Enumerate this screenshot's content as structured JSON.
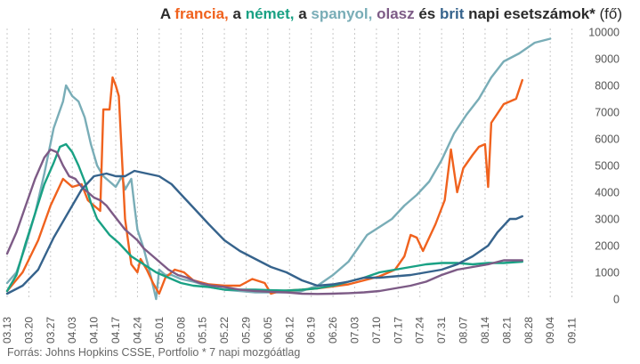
{
  "title": {
    "p1": "A ",
    "c1": "francia,",
    "p2": " a ",
    "c2": "német,",
    "p3": " a ",
    "c3": "spanyol,",
    "p4": " ",
    "c4": "olasz",
    "p5": " és ",
    "c5": "brit",
    "p6": " napi esetszámok* ",
    "p7": "(fő)"
  },
  "source": "Forrás: Johns Hopkins CSSE, Portfolio  * 7 napi mozgóátlag",
  "chart_data": {
    "type": "line",
    "title": "A francia, a német, a spanyol, olasz és brit napi esetszámok* (fő)",
    "x_tick_labels": [
      "03.13",
      "03.20",
      "03.27",
      "04.03",
      "04.10",
      "04.17",
      "04.24",
      "05.01",
      "05.08",
      "05.15",
      "05.22",
      "05.29",
      "06.05",
      "06.12",
      "06.19",
      "06.26",
      "07.03",
      "07.10",
      "07.17",
      "07.24",
      "07.31",
      "08.07",
      "08.14",
      "08.21",
      "08.28",
      "09.04",
      "09.11"
    ],
    "x_range_days": [
      0,
      187
    ],
    "ylim": [
      0,
      10000
    ],
    "y_ticks": [
      0,
      1000,
      2000,
      3000,
      4000,
      5000,
      6000,
      7000,
      8000,
      9000,
      10000
    ],
    "y_axis_side": "right",
    "grid": "vertical dashed",
    "series": [
      {
        "name": "spanyol",
        "color": "#79adb7",
        "points": [
          [
            0,
            600
          ],
          [
            3,
            1000
          ],
          [
            6,
            2000
          ],
          [
            9,
            3200
          ],
          [
            12,
            4700
          ],
          [
            15,
            6400
          ],
          [
            18,
            7400
          ],
          [
            19,
            8000
          ],
          [
            21,
            7600
          ],
          [
            23,
            7400
          ],
          [
            25,
            6800
          ],
          [
            27,
            5800
          ],
          [
            29,
            5000
          ],
          [
            31,
            4600
          ],
          [
            33,
            4400
          ],
          [
            35,
            4200
          ],
          [
            37,
            4600
          ],
          [
            38,
            4100
          ],
          [
            40,
            4500
          ],
          [
            41,
            3500
          ],
          [
            42,
            2600
          ],
          [
            44,
            1900
          ],
          [
            46,
            1000
          ],
          [
            48,
            0
          ],
          [
            49,
            1100
          ],
          [
            51,
            900
          ],
          [
            53,
            900
          ],
          [
            56,
            750
          ],
          [
            60,
            650
          ],
          [
            63,
            550
          ],
          [
            65,
            450
          ],
          [
            70,
            350
          ],
          [
            75,
            300
          ],
          [
            80,
            250
          ],
          [
            85,
            250
          ],
          [
            90,
            250
          ],
          [
            95,
            300
          ],
          [
            100,
            500
          ],
          [
            105,
            900
          ],
          [
            110,
            1400
          ],
          [
            113,
            1900
          ],
          [
            116,
            2400
          ],
          [
            120,
            2700
          ],
          [
            124,
            3000
          ],
          [
            128,
            3500
          ],
          [
            132,
            3900
          ],
          [
            136,
            4400
          ],
          [
            140,
            5200
          ],
          [
            144,
            6200
          ],
          [
            148,
            6900
          ],
          [
            152,
            7500
          ],
          [
            156,
            8300
          ],
          [
            160,
            8900
          ],
          [
            165,
            9200
          ],
          [
            170,
            9600
          ],
          [
            175,
            9750
          ]
        ]
      },
      {
        "name": "francia",
        "color": "#f0621e",
        "points": [
          [
            0,
            300
          ],
          [
            5,
            1000
          ],
          [
            10,
            2200
          ],
          [
            14,
            3500
          ],
          [
            18,
            4500
          ],
          [
            21,
            4200
          ],
          [
            24,
            4300
          ],
          [
            26,
            3700
          ],
          [
            28,
            3500
          ],
          [
            30,
            3300
          ],
          [
            31,
            7100
          ],
          [
            33,
            7100
          ],
          [
            34,
            8300
          ],
          [
            35,
            8000
          ],
          [
            36,
            7600
          ],
          [
            38,
            3000
          ],
          [
            40,
            1300
          ],
          [
            42,
            1000
          ],
          [
            43,
            1500
          ],
          [
            45,
            1100
          ],
          [
            47,
            600
          ],
          [
            49,
            200
          ],
          [
            51,
            800
          ],
          [
            54,
            1100
          ],
          [
            57,
            1000
          ],
          [
            60,
            700
          ],
          [
            65,
            550
          ],
          [
            70,
            500
          ],
          [
            75,
            500
          ],
          [
            79,
            750
          ],
          [
            83,
            600
          ],
          [
            85,
            200
          ],
          [
            88,
            300
          ],
          [
            95,
            350
          ],
          [
            100,
            400
          ],
          [
            110,
            550
          ],
          [
            115,
            700
          ],
          [
            120,
            850
          ],
          [
            125,
            1100
          ],
          [
            128,
            1600
          ],
          [
            130,
            2400
          ],
          [
            132,
            2300
          ],
          [
            134,
            1800
          ],
          [
            138,
            2800
          ],
          [
            141,
            3700
          ],
          [
            143,
            5600
          ],
          [
            145,
            4000
          ],
          [
            147,
            4900
          ],
          [
            150,
            5400
          ],
          [
            152,
            5700
          ],
          [
            154,
            5800
          ],
          [
            155,
            4200
          ],
          [
            156,
            6600
          ],
          [
            160,
            7300
          ],
          [
            164,
            7500
          ],
          [
            166,
            8200
          ]
        ]
      },
      {
        "name": "német",
        "color": "#19a184",
        "points": [
          [
            0,
            300
          ],
          [
            3,
            900
          ],
          [
            6,
            2100
          ],
          [
            9,
            3200
          ],
          [
            12,
            4300
          ],
          [
            15,
            5100
          ],
          [
            17,
            5700
          ],
          [
            19,
            5800
          ],
          [
            21,
            5500
          ],
          [
            23,
            5000
          ],
          [
            25,
            4400
          ],
          [
            27,
            3600
          ],
          [
            29,
            3000
          ],
          [
            31,
            2700
          ],
          [
            33,
            2400
          ],
          [
            36,
            2100
          ],
          [
            40,
            1600
          ],
          [
            44,
            1300
          ],
          [
            48,
            1000
          ],
          [
            52,
            800
          ],
          [
            56,
            600
          ],
          [
            60,
            500
          ],
          [
            65,
            450
          ],
          [
            70,
            350
          ],
          [
            75,
            350
          ],
          [
            80,
            350
          ],
          [
            85,
            330
          ],
          [
            90,
            320
          ],
          [
            95,
            350
          ],
          [
            100,
            400
          ],
          [
            105,
            500
          ],
          [
            110,
            650
          ],
          [
            115,
            800
          ],
          [
            120,
            1000
          ],
          [
            125,
            1100
          ],
          [
            130,
            1200
          ],
          [
            135,
            1300
          ],
          [
            140,
            1350
          ],
          [
            145,
            1350
          ],
          [
            150,
            1300
          ],
          [
            155,
            1350
          ],
          [
            160,
            1350
          ],
          [
            166,
            1400
          ]
        ]
      },
      {
        "name": "olasz",
        "color": "#7d5b86",
        "points": [
          [
            0,
            1700
          ],
          [
            3,
            2500
          ],
          [
            6,
            3500
          ],
          [
            9,
            4500
          ],
          [
            12,
            5300
          ],
          [
            14,
            5600
          ],
          [
            16,
            5500
          ],
          [
            18,
            5000
          ],
          [
            20,
            4600
          ],
          [
            22,
            4500
          ],
          [
            24,
            4200
          ],
          [
            26,
            4000
          ],
          [
            28,
            3800
          ],
          [
            30,
            3700
          ],
          [
            32,
            3500
          ],
          [
            34,
            3200
          ],
          [
            36,
            2900
          ],
          [
            38,
            2600
          ],
          [
            40,
            2400
          ],
          [
            42,
            2200
          ],
          [
            44,
            1900
          ],
          [
            46,
            1700
          ],
          [
            48,
            1500
          ],
          [
            50,
            1300
          ],
          [
            52,
            1100
          ],
          [
            55,
            900
          ],
          [
            58,
            800
          ],
          [
            62,
            600
          ],
          [
            66,
            500
          ],
          [
            70,
            450
          ],
          [
            75,
            350
          ],
          [
            80,
            300
          ],
          [
            85,
            270
          ],
          [
            90,
            250
          ],
          [
            95,
            200
          ],
          [
            100,
            190
          ],
          [
            105,
            200
          ],
          [
            110,
            220
          ],
          [
            115,
            250
          ],
          [
            120,
            300
          ],
          [
            125,
            400
          ],
          [
            130,
            500
          ],
          [
            135,
            650
          ],
          [
            140,
            900
          ],
          [
            145,
            1100
          ],
          [
            150,
            1200
          ],
          [
            155,
            1300
          ],
          [
            160,
            1450
          ],
          [
            166,
            1450
          ]
        ]
      },
      {
        "name": "brit",
        "color": "#36638c",
        "points": [
          [
            0,
            200
          ],
          [
            5,
            500
          ],
          [
            10,
            1100
          ],
          [
            15,
            2300
          ],
          [
            20,
            3300
          ],
          [
            24,
            4100
          ],
          [
            28,
            4600
          ],
          [
            32,
            4700
          ],
          [
            35,
            4600
          ],
          [
            38,
            4600
          ],
          [
            41,
            4800
          ],
          [
            45,
            4700
          ],
          [
            49,
            4600
          ],
          [
            53,
            4300
          ],
          [
            57,
            3800
          ],
          [
            61,
            3300
          ],
          [
            65,
            2800
          ],
          [
            70,
            2200
          ],
          [
            75,
            1800
          ],
          [
            80,
            1500
          ],
          [
            85,
            1200
          ],
          [
            90,
            1000
          ],
          [
            95,
            700
          ],
          [
            100,
            500
          ],
          [
            105,
            550
          ],
          [
            110,
            650
          ],
          [
            115,
            800
          ],
          [
            120,
            800
          ],
          [
            125,
            850
          ],
          [
            130,
            900
          ],
          [
            135,
            1000
          ],
          [
            140,
            1100
          ],
          [
            145,
            1300
          ],
          [
            150,
            1600
          ],
          [
            155,
            2000
          ],
          [
            158,
            2500
          ],
          [
            162,
            3000
          ],
          [
            164,
            3000
          ],
          [
            166,
            3100
          ]
        ]
      }
    ]
  }
}
